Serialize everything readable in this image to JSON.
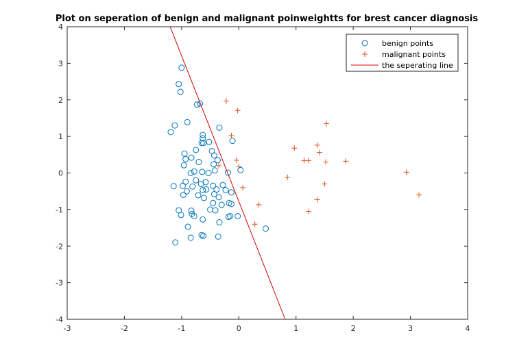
{
  "chart_data": {
    "type": "scatter",
    "title": "Plot on seperation of benign and malignant poinweightts for brest cancer diagnosis",
    "xlabel": "",
    "ylabel": "",
    "xlim": [
      -3,
      4
    ],
    "ylim": [
      -4,
      4
    ],
    "xticks": [
      -3,
      -2,
      -1,
      0,
      1,
      2,
      3,
      4
    ],
    "yticks": [
      -4,
      -3,
      -2,
      -1,
      0,
      1,
      2,
      3,
      4
    ],
    "grid": false,
    "legend_position": "top-right",
    "series": [
      {
        "name": "benign points",
        "marker": "circle",
        "color": "#0072BD",
        "points": [
          [
            -1.0,
            2.88
          ],
          [
            -1.05,
            2.43
          ],
          [
            -1.02,
            2.22
          ],
          [
            -0.73,
            1.87
          ],
          [
            -0.68,
            1.9
          ],
          [
            -1.19,
            1.12
          ],
          [
            -1.12,
            1.3
          ],
          [
            -0.9,
            1.39
          ],
          [
            -0.34,
            1.24
          ],
          [
            -0.63,
            1.04
          ],
          [
            -0.63,
            0.95
          ],
          [
            -0.65,
            0.82
          ],
          [
            -0.62,
            0.82
          ],
          [
            -0.52,
            0.85
          ],
          [
            -0.11,
            0.88
          ],
          [
            -0.75,
            0.63
          ],
          [
            -0.47,
            0.6
          ],
          [
            -0.95,
            0.53
          ],
          [
            -0.43,
            0.48
          ],
          [
            -0.93,
            0.38
          ],
          [
            -0.83,
            0.42
          ],
          [
            -0.7,
            0.3
          ],
          [
            -0.37,
            0.35
          ],
          [
            -0.44,
            0.24
          ],
          [
            -0.96,
            0.21
          ],
          [
            -0.84,
            0.0
          ],
          [
            -0.78,
            0.04
          ],
          [
            -0.64,
            0.03
          ],
          [
            -0.53,
            0.0
          ],
          [
            -0.42,
            0.07
          ],
          [
            0.03,
            0.08
          ],
          [
            -0.19,
            0.01
          ],
          [
            -0.93,
            -0.24
          ],
          [
            -0.75,
            -0.2
          ],
          [
            -0.66,
            -0.3
          ],
          [
            -0.58,
            -0.25
          ],
          [
            -0.45,
            -0.35
          ],
          [
            -0.28,
            -0.33
          ],
          [
            -1.14,
            -0.36
          ],
          [
            -0.98,
            -0.35
          ],
          [
            -0.91,
            -0.5
          ],
          [
            -0.81,
            -0.37
          ],
          [
            -0.63,
            -0.47
          ],
          [
            -0.57,
            -0.45
          ],
          [
            -0.39,
            -0.45
          ],
          [
            -0.23,
            -0.47
          ],
          [
            -0.43,
            -0.58
          ],
          [
            -0.13,
            -0.53
          ],
          [
            -0.97,
            -0.6
          ],
          [
            -0.71,
            -0.61
          ],
          [
            -0.61,
            -0.68
          ],
          [
            -0.45,
            -0.82
          ],
          [
            -0.35,
            -0.66
          ],
          [
            -0.17,
            -0.82
          ],
          [
            -0.13,
            -0.85
          ],
          [
            -0.3,
            -0.87
          ],
          [
            -0.5,
            -1.0
          ],
          [
            -1.05,
            -1.02
          ],
          [
            -0.83,
            -1.03
          ],
          [
            -0.82,
            -1.12
          ],
          [
            -1.01,
            -1.15
          ],
          [
            -0.78,
            -1.18
          ],
          [
            -0.41,
            -1.02
          ],
          [
            -0.15,
            -1.18
          ],
          [
            -0.02,
            -1.18
          ],
          [
            -0.18,
            -1.2
          ],
          [
            -0.63,
            -1.27
          ],
          [
            -0.34,
            -1.35
          ],
          [
            0.47,
            -1.52
          ],
          [
            -0.89,
            -1.47
          ],
          [
            -0.84,
            -1.77
          ],
          [
            -0.65,
            -1.7
          ],
          [
            -0.62,
            -1.72
          ],
          [
            -0.36,
            -1.74
          ],
          [
            -1.11,
            -1.9
          ]
        ]
      },
      {
        "name": "malignant points",
        "marker": "plus",
        "color": "#D95319",
        "points": [
          [
            -0.22,
            1.97
          ],
          [
            -0.02,
            1.71
          ],
          [
            -0.13,
            1.02
          ],
          [
            -0.35,
            0.2
          ],
          [
            -0.04,
            0.35
          ],
          [
            0.0,
            0.18
          ],
          [
            0.07,
            -0.4
          ],
          [
            0.35,
            -0.87
          ],
          [
            0.28,
            -1.4
          ],
          [
            0.85,
            -0.12
          ],
          [
            0.97,
            0.68
          ],
          [
            1.14,
            0.34
          ],
          [
            1.22,
            0.34
          ],
          [
            1.37,
            0.76
          ],
          [
            1.41,
            0.56
          ],
          [
            1.52,
            0.3
          ],
          [
            1.53,
            1.35
          ],
          [
            1.5,
            -0.3
          ],
          [
            1.37,
            -0.73
          ],
          [
            1.22,
            -1.05
          ],
          [
            1.87,
            0.32
          ],
          [
            2.93,
            0.02
          ],
          [
            3.15,
            -0.6
          ]
        ]
      },
      {
        "name": "the seperating line",
        "marker": "line",
        "color": "#CC0000",
        "points": [
          [
            -1.2,
            4.0
          ],
          [
            0.81,
            -4.0
          ]
        ]
      }
    ]
  }
}
